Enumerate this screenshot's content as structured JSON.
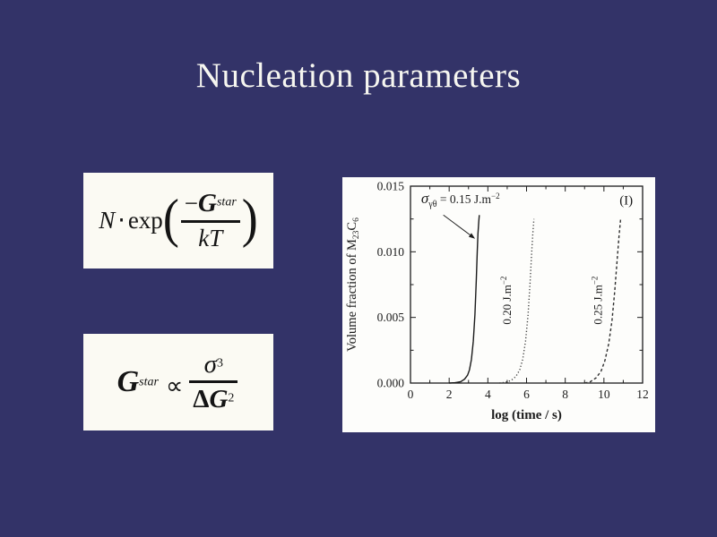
{
  "slide": {
    "title": "Nucleation parameters",
    "colors": {
      "background": "#333368",
      "title_text": "#f6f6f0",
      "equation_panel_bg": "#fbfaf3",
      "chart_bg": "#fdfdfb",
      "ink": "#141414"
    }
  },
  "equations": {
    "rate": {
      "n": "N",
      "dot": "⋅",
      "exp": "exp",
      "open": "(",
      "minus": "−",
      "g": "G",
      "g_sup": "star",
      "den": "kT",
      "close": ")"
    },
    "gstar": {
      "g": "G",
      "g_sup": "star",
      "propto": "∝",
      "num": "σ",
      "num_sup": "3",
      "delta": "Δ",
      "den_g": "G",
      "den_sup": "2"
    }
  },
  "chart_data": {
    "type": "line",
    "title": "",
    "xlabel": "log (time / s)",
    "ylabel": "Volume fraction of M23C6",
    "ylabel_parts": {
      "pre": "Volume fraction of M",
      "sub_a": "23",
      "mid": "C",
      "sub_b": "6"
    },
    "xlim": [
      0,
      12
    ],
    "ylim": [
      0.0,
      0.015
    ],
    "xtick_labels": [
      "0",
      "2",
      "4",
      "6",
      "8",
      "10",
      "12"
    ],
    "xtick_values": [
      0,
      2,
      4,
      6,
      8,
      10,
      12
    ],
    "x_minor_ticks": [
      1,
      3,
      5,
      7,
      9,
      11
    ],
    "ytick_labels": [
      "0.000",
      "0.005",
      "0.010",
      "0.015"
    ],
    "ytick_values": [
      0,
      0.005,
      0.01,
      0.015
    ],
    "y_minor_ticks": [
      0.0025,
      0.0075,
      0.0125
    ],
    "grid": false,
    "panel_label": "(I)",
    "panel_label_xy": [
      11.15,
      0.0136
    ],
    "annotation": {
      "sigma": "σ",
      "sigma_sub": "γθ",
      "rest": " = 0.15 J.m",
      "sup": "−2",
      "text_xy": [
        0.55,
        0.0137
      ],
      "arrow_from_xy": [
        1.7,
        0.0128
      ],
      "arrow_to_xy": [
        3.34,
        0.011
      ]
    },
    "series": [
      {
        "name": "sigma = 0.15 J.m-2",
        "style": "solid",
        "color": "#1a1a1a",
        "points": [
          [
            2.0,
            0.0
          ],
          [
            2.3,
            3e-05
          ],
          [
            2.6,
            0.0001
          ],
          [
            2.8,
            0.0003
          ],
          [
            2.95,
            0.0006
          ],
          [
            3.05,
            0.001
          ],
          [
            3.15,
            0.0018
          ],
          [
            3.25,
            0.0032
          ],
          [
            3.33,
            0.0052
          ],
          [
            3.4,
            0.0078
          ],
          [
            3.45,
            0.01
          ],
          [
            3.49,
            0.0114
          ],
          [
            3.53,
            0.0123
          ],
          [
            3.56,
            0.0128
          ]
        ]
      },
      {
        "name": "sigma = 0.20 J.m-2",
        "style": "dotted",
        "color": "#3d3d3d",
        "label": "0.20 J.m",
        "label_sup": "−2",
        "label_xy": [
          5.2,
          0.0063
        ],
        "points": [
          [
            4.6,
            0.0
          ],
          [
            4.9,
            5e-05
          ],
          [
            5.2,
            0.0002
          ],
          [
            5.45,
            0.0005
          ],
          [
            5.65,
            0.001
          ],
          [
            5.8,
            0.0018
          ],
          [
            5.95,
            0.0032
          ],
          [
            6.08,
            0.0052
          ],
          [
            6.18,
            0.0076
          ],
          [
            6.26,
            0.0098
          ],
          [
            6.32,
            0.0113
          ],
          [
            6.38,
            0.0125
          ]
        ]
      },
      {
        "name": "sigma = 0.25 J.m-2",
        "style": "dashed",
        "color": "#2e2e2e",
        "label": "0.25 J.m",
        "label_sup": "−2",
        "label_xy": [
          9.9,
          0.0063
        ],
        "points": [
          [
            9.0,
            0.0
          ],
          [
            9.3,
            0.0001
          ],
          [
            9.6,
            0.0004
          ],
          [
            9.85,
            0.0009
          ],
          [
            10.05,
            0.0017
          ],
          [
            10.25,
            0.003
          ],
          [
            10.42,
            0.0048
          ],
          [
            10.56,
            0.007
          ],
          [
            10.68,
            0.0093
          ],
          [
            10.78,
            0.0112
          ],
          [
            10.87,
            0.0126
          ]
        ]
      }
    ]
  }
}
